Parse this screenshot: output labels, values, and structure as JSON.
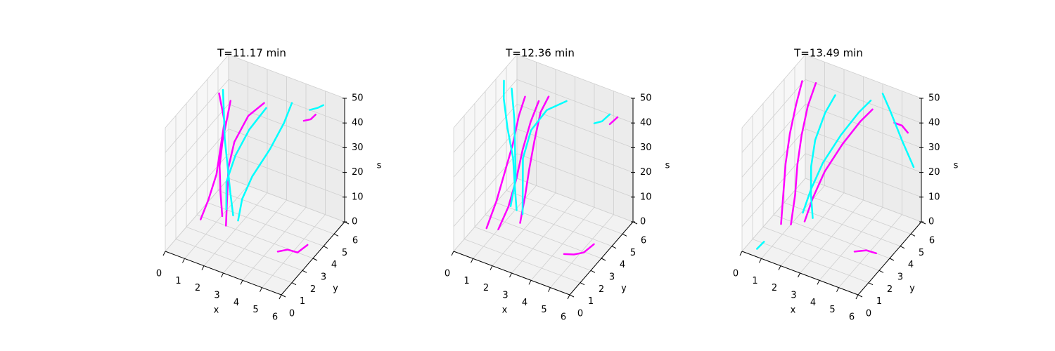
{
  "chart_data": [
    {
      "type": "line3d",
      "title": "T=11.17 min",
      "xlabel": "x",
      "ylabel": "y",
      "zlabel": "s",
      "xlim": [
        0,
        6
      ],
      "ylim": [
        0,
        6
      ],
      "zlim": [
        0,
        50
      ],
      "xticks": [
        0,
        1,
        2,
        3,
        4,
        5,
        6
      ],
      "yticks": [
        0,
        1,
        2,
        3,
        4,
        5,
        6
      ],
      "zticks": [
        0,
        10,
        20,
        30,
        40,
        50
      ],
      "series": [
        {
          "color": "#ff00ff",
          "x": [
            1.2,
            1.0,
            0.9,
            1.0,
            1.2,
            1.3
          ],
          "y": [
            3.2,
            3.4,
            3.5,
            3.6,
            3.7,
            3.8
          ],
          "z": [
            2,
            10,
            20,
            30,
            40,
            46
          ]
        },
        {
          "color": "#ff00ff",
          "x": [
            1.5,
            1.4,
            1.3,
            1.5,
            2.0,
            2.6
          ],
          "y": [
            3.0,
            3.3,
            3.6,
            3.8,
            4.2,
            4.6
          ],
          "z": [
            0,
            10,
            20,
            30,
            40,
            45
          ]
        },
        {
          "color": "#ff00ff",
          "x": [
            0.3,
            0.6,
            0.9,
            1.0,
            1.1,
            0.6
          ],
          "y": [
            2.8,
            3.0,
            3.2,
            3.4,
            3.6,
            4.0
          ],
          "z": [
            0,
            8,
            18,
            28,
            38,
            46
          ]
        },
        {
          "color": "#ff00ff",
          "x": [
            4.4,
            4.8,
            5.2,
            5.5
          ],
          "y": [
            2.6,
            2.8,
            3.0,
            3.4
          ],
          "z": [
            0,
            1,
            0,
            2
          ]
        },
        {
          "color": "#ff00ff",
          "x": [
            4.0,
            4.3,
            4.5
          ],
          "y": [
            5.8,
            5.9,
            6
          ],
          "z": [
            36,
            37,
            39
          ]
        },
        {
          "color": "#00ffff",
          "x": [
            1.6,
            1.4,
            1.2,
            1.0,
            0.9,
            0.8
          ],
          "y": [
            3.5,
            3.6,
            3.7,
            3.8,
            3.9,
            4.0
          ],
          "z": [
            2,
            10,
            20,
            30,
            40,
            48
          ]
        },
        {
          "color": "#00ffff",
          "x": [
            1.8,
            1.9,
            2.2,
            2.8,
            3.3,
            3.6
          ],
          "y": [
            3.6,
            3.8,
            4.2,
            4.8,
            5.2,
            5.4
          ],
          "z": [
            0,
            8,
            16,
            26,
            36,
            44
          ]
        },
        {
          "color": "#00ffff",
          "x": [
            1.3,
            1.2,
            1.5,
            2.0,
            2.6
          ],
          "y": [
            3.4,
            3.6,
            3.9,
            4.3,
            4.8
          ],
          "z": [
            4,
            14,
            24,
            34,
            42
          ]
        },
        {
          "color": "#00ffff",
          "x": [
            4.2,
            4.6,
            4.9
          ],
          "y": [
            6,
            6,
            6
          ],
          "z": [
            40,
            42,
            44
          ]
        }
      ]
    },
    {
      "type": "line3d",
      "title": "T=12.36 min",
      "xlabel": "x",
      "ylabel": "y",
      "zlabel": "s",
      "xlim": [
        0,
        6
      ],
      "ylim": [
        0,
        6
      ],
      "zlim": [
        0,
        50
      ],
      "xticks": [
        0,
        1,
        2,
        3,
        4,
        5,
        6
      ],
      "yticks": [
        0,
        1,
        2,
        3,
        4,
        5,
        6
      ],
      "zticks": [
        0,
        10,
        20,
        30,
        40,
        50
      ],
      "series": [
        {
          "color": "#ff00ff",
          "x": [
            0.5,
            0.8,
            1.0,
            1.2,
            1.3,
            1.4
          ],
          "y": [
            2.2,
            2.6,
            3.0,
            3.4,
            3.8,
            4.2
          ],
          "z": [
            0,
            10,
            20,
            30,
            40,
            46
          ]
        },
        {
          "color": "#ff00ff",
          "x": [
            1.0,
            1.3,
            1.5,
            1.6,
            1.8,
            2.0
          ],
          "y": [
            2.4,
            2.8,
            3.2,
            3.6,
            4.0,
            4.4
          ],
          "z": [
            0,
            8,
            18,
            28,
            38,
            45
          ]
        },
        {
          "color": "#ff00ff",
          "x": [
            1.8,
            1.9,
            2.0,
            2.1,
            2.2,
            2.4
          ],
          "y": [
            3.0,
            3.3,
            3.5,
            3.8,
            4.2,
            4.6
          ],
          "z": [
            2,
            12,
            22,
            32,
            42,
            47
          ]
        },
        {
          "color": "#ff00ff",
          "x": [
            4.4,
            4.8,
            5.2,
            5.4
          ],
          "y": [
            2.4,
            2.6,
            2.8,
            3.4
          ],
          "z": [
            0,
            0,
            1,
            2
          ]
        },
        {
          "color": "#ff00ff",
          "x": [
            4.8,
            5.0,
            5.2
          ],
          "y": [
            6,
            6,
            6
          ],
          "z": [
            36,
            38,
            40
          ]
        },
        {
          "color": "#00ffff",
          "x": [
            1.4,
            1.2,
            1.0,
            0.6,
            0.3,
            0.2
          ],
          "y": [
            3.4,
            3.6,
            3.8,
            4.0,
            4.2,
            4.4
          ],
          "z": [
            4,
            12,
            22,
            32,
            42,
            48
          ]
        },
        {
          "color": "#00ffff",
          "x": [
            1.6,
            1.5,
            1.4,
            1.6,
            2.2,
            3.0
          ],
          "y": [
            3.6,
            3.8,
            4.0,
            4.4,
            4.8,
            5.2
          ],
          "z": [
            2,
            12,
            22,
            32,
            40,
            44
          ]
        },
        {
          "color": "#00ffff",
          "x": [
            1.2,
            1.3,
            1.1,
            0.9,
            0.6
          ],
          "y": [
            3.2,
            3.5,
            3.8,
            4.1,
            4.4
          ],
          "z": [
            6,
            16,
            26,
            36,
            46
          ]
        },
        {
          "color": "#00ffff",
          "x": [
            4.0,
            4.4,
            4.8
          ],
          "y": [
            6,
            6,
            6
          ],
          "z": [
            34,
            36,
            40
          ]
        }
      ]
    },
    {
      "type": "line3d",
      "title": "T=13.49 min",
      "xlabel": "x",
      "ylabel": "y",
      "zlabel": "s",
      "xlim": [
        0,
        6
      ],
      "ylim": [
        0,
        6
      ],
      "zlim": [
        0,
        50
      ],
      "xticks": [
        0,
        1,
        2,
        3,
        4,
        5,
        6
      ],
      "yticks": [
        0,
        1,
        2,
        3,
        4,
        5,
        6
      ],
      "zticks": [
        0,
        10,
        20,
        30,
        40,
        50
      ],
      "series": [
        {
          "color": "#ff00ff",
          "x": [
            0.6,
            0.5,
            0.4,
            0.4,
            0.5,
            0.6
          ],
          "y": [
            2.6,
            3.0,
            3.4,
            3.8,
            4.2,
            4.6
          ],
          "z": [
            0,
            10,
            20,
            30,
            40,
            48
          ]
        },
        {
          "color": "#ff00ff",
          "x": [
            1.0,
            1.0,
            0.9,
            0.9,
            1.0,
            1.2
          ],
          "y": [
            2.8,
            3.2,
            3.6,
            4.0,
            4.4,
            4.8
          ],
          "z": [
            0,
            10,
            20,
            30,
            40,
            48
          ]
        },
        {
          "color": "#ff00ff",
          "x": [
            1.6,
            1.8,
            2.2,
            2.8,
            3.4,
            3.8
          ],
          "y": [
            3.0,
            3.4,
            3.8,
            4.4,
            5.0,
            5.4
          ],
          "z": [
            2,
            10,
            20,
            30,
            38,
            42
          ]
        },
        {
          "color": "#ff00ff",
          "x": [
            4.4,
            4.9,
            5.3
          ],
          "y": [
            2.6,
            2.8,
            3.0
          ],
          "z": [
            0,
            1,
            0
          ]
        },
        {
          "color": "#ff00ff",
          "x": [
            4.6,
            5.0,
            5.3
          ],
          "y": [
            6,
            6,
            6
          ],
          "z": [
            36,
            36,
            34
          ]
        },
        {
          "color": "#00ffff",
          "x": [
            1.8,
            1.6,
            1.5,
            1.6,
            1.9,
            2.2
          ],
          "y": [
            3.4,
            3.6,
            3.8,
            4.0,
            4.4,
            4.8
          ],
          "z": [
            2,
            10,
            20,
            30,
            40,
            46
          ]
        },
        {
          "color": "#00ffff",
          "x": [
            1.4,
            1.6,
            2.0,
            2.6,
            3.2,
            3.6
          ],
          "y": [
            3.2,
            3.6,
            4.0,
            4.6,
            5.2,
            5.6
          ],
          "z": [
            4,
            12,
            22,
            32,
            40,
            44
          ]
        },
        {
          "color": "#00ffff",
          "x": [
            0.5,
            0.7
          ],
          "y": [
            0.5,
            0.8
          ],
          "z": [
            0,
            2
          ]
        },
        {
          "color": "#00ffff",
          "x": [
            4.0,
            4.4,
            5.0,
            5.6
          ],
          "y": [
            6,
            6,
            6,
            6
          ],
          "z": [
            46,
            40,
            30,
            21
          ]
        }
      ]
    }
  ]
}
